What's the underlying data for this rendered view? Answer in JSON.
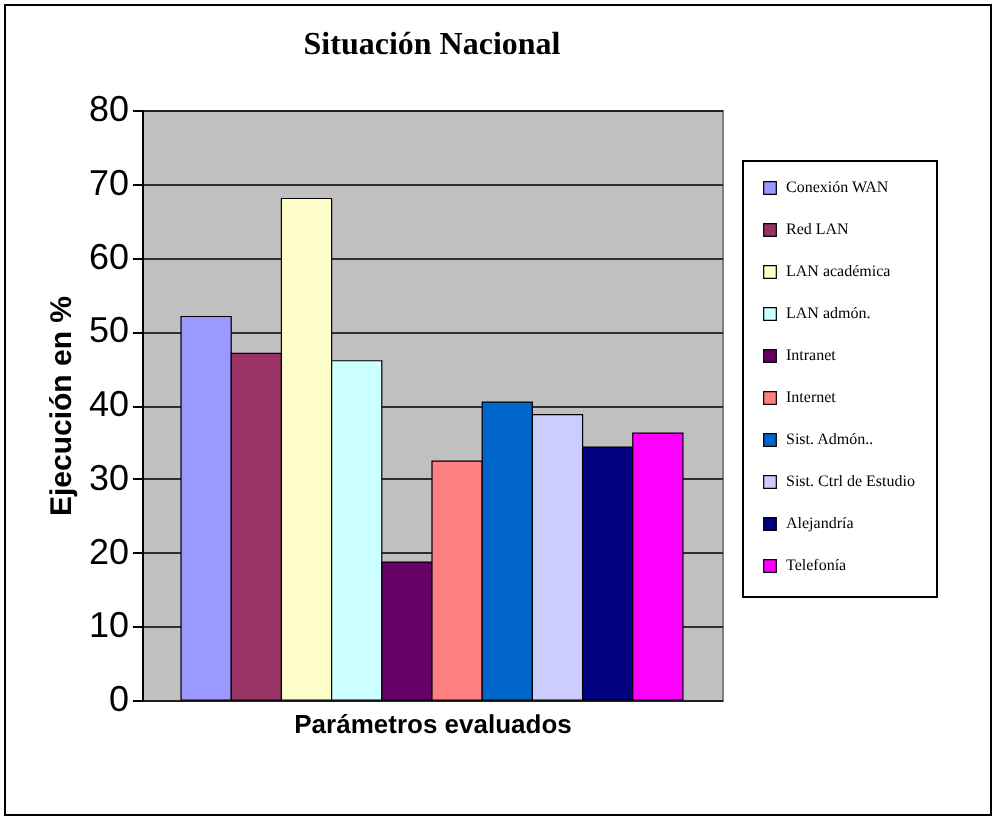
{
  "chart_data": {
    "type": "bar",
    "title": "Situación Nacional",
    "xlabel": "Parámetros evaluados",
    "ylabel": "Ejecución en %",
    "categories": [
      null
    ],
    "series": [
      {
        "name": "Conexión WAN",
        "color": "#9999ff",
        "values": [
          52
        ]
      },
      {
        "name": "Red LAN",
        "color": "#993366",
        "values": [
          47
        ]
      },
      {
        "name": "LAN académica",
        "color": "#ffffcc",
        "values": [
          68
        ]
      },
      {
        "name": "LAN admón.",
        "color": "#ccffff",
        "values": [
          46
        ]
      },
      {
        "name": "Intranet",
        "color": "#660066",
        "values": [
          18.7
        ]
      },
      {
        "name": "Internet",
        "color": "#ff8080",
        "values": [
          32.4
        ]
      },
      {
        "name": "Sist. Admón..",
        "color": "#0066cc",
        "values": [
          40.4
        ]
      },
      {
        "name": "Sist. Ctrl de Estudio",
        "color": "#ccccff",
        "values": [
          38.7
        ]
      },
      {
        "name": "Alejandría",
        "color": "#000080",
        "values": [
          34.3
        ]
      },
      {
        "name": "Telefonía",
        "color": "#ff00ff",
        "values": [
          36.2
        ]
      }
    ],
    "ylim": [
      0,
      80
    ],
    "yticks": [
      0,
      10,
      20,
      30,
      40,
      50,
      60,
      70,
      80
    ],
    "grid": "y",
    "legend": "right"
  }
}
